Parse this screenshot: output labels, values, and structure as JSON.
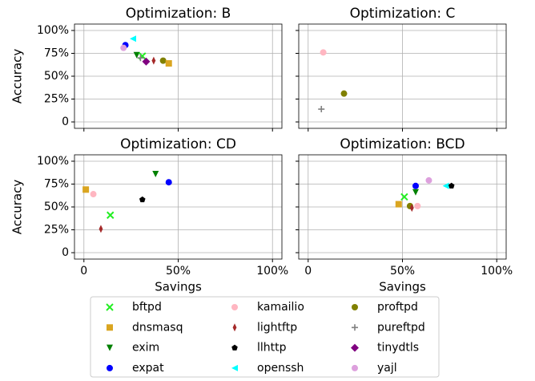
{
  "chart_data": [
    {
      "type": "scatter",
      "title": "Optimization: B",
      "series": [
        {
          "name": "expat",
          "x": [
            22
          ],
          "values": [
            84
          ]
        },
        {
          "name": "openssh",
          "x": [
            26
          ],
          "values": [
            91
          ]
        },
        {
          "name": "yajl",
          "x": [
            21
          ],
          "values": [
            81
          ]
        },
        {
          "name": "exim",
          "x": [
            28
          ],
          "values": [
            73
          ]
        },
        {
          "name": "bftpd",
          "x": [
            31
          ],
          "values": [
            72
          ]
        },
        {
          "name": "pureftpd",
          "x": [
            30
          ],
          "values": [
            70
          ]
        },
        {
          "name": "tinydtls",
          "x": [
            33
          ],
          "values": [
            66
          ]
        },
        {
          "name": "lightftp",
          "x": [
            37
          ],
          "values": [
            67
          ]
        },
        {
          "name": "proftpd",
          "x": [
            42
          ],
          "values": [
            67
          ]
        },
        {
          "name": "dnsmasq",
          "x": [
            45
          ],
          "values": [
            64
          ]
        }
      ]
    },
    {
      "type": "scatter",
      "title": "Optimization: C",
      "series": [
        {
          "name": "kamailio",
          "x": [
            8
          ],
          "values": [
            76
          ]
        },
        {
          "name": "proftpd",
          "x": [
            19
          ],
          "values": [
            31
          ]
        },
        {
          "name": "pureftpd",
          "x": [
            7
          ],
          "values": [
            14
          ]
        }
      ]
    },
    {
      "type": "scatter",
      "title": "Optimization: CD",
      "series": [
        {
          "name": "dnsmasq",
          "x": [
            1
          ],
          "values": [
            69
          ]
        },
        {
          "name": "kamailio",
          "x": [
            5
          ],
          "values": [
            64
          ]
        },
        {
          "name": "exim",
          "x": [
            38
          ],
          "values": [
            86
          ]
        },
        {
          "name": "expat",
          "x": [
            45
          ],
          "values": [
            77
          ]
        },
        {
          "name": "llhttp",
          "x": [
            31
          ],
          "values": [
            58
          ]
        },
        {
          "name": "bftpd",
          "x": [
            14
          ],
          "values": [
            41
          ]
        },
        {
          "name": "lightftp",
          "x": [
            9
          ],
          "values": [
            26
          ]
        }
      ]
    },
    {
      "type": "scatter",
      "title": "Optimization: BCD",
      "series": [
        {
          "name": "bftpd",
          "x": [
            51
          ],
          "values": [
            61
          ]
        },
        {
          "name": "dnsmasq",
          "x": [
            48
          ],
          "values": [
            53
          ]
        },
        {
          "name": "proftpd",
          "x": [
            54
          ],
          "values": [
            51
          ]
        },
        {
          "name": "lightftp",
          "x": [
            55
          ],
          "values": [
            49
          ]
        },
        {
          "name": "kamailio",
          "x": [
            58
          ],
          "values": [
            51
          ]
        },
        {
          "name": "exim",
          "x": [
            57
          ],
          "values": [
            66
          ]
        },
        {
          "name": "expat",
          "x": [
            57
          ],
          "values": [
            73
          ]
        },
        {
          "name": "yajl",
          "x": [
            64
          ],
          "values": [
            79
          ]
        },
        {
          "name": "openssh",
          "x": [
            73
          ],
          "values": [
            73
          ]
        },
        {
          "name": "llhttp",
          "x": [
            76
          ],
          "values": [
            73
          ]
        }
      ]
    }
  ],
  "x_label": "Savings",
  "y_label": "Accuracy",
  "xlim": [
    -5,
    105
  ],
  "ylim": [
    -7,
    107
  ],
  "xticks": [
    0,
    {
      "value": 50,
      "label": "50%"
    },
    {
      "value": 100,
      "label": "100%"
    }
  ],
  "yticks": [
    0,
    {
      "value": 25,
      "label": "25%"
    },
    {
      "value": 50,
      "label": "50%"
    },
    {
      "value": 75,
      "label": "75%"
    },
    {
      "value": 100,
      "label": "100%"
    }
  ],
  "grid": true,
  "legend": [
    {
      "name": "bftpd",
      "color": "#22ee22",
      "marker": "x"
    },
    {
      "name": "dnsmasq",
      "color": "#daa520",
      "marker": "square"
    },
    {
      "name": "exim",
      "color": "#008000",
      "marker": "triangle-down"
    },
    {
      "name": "expat",
      "color": "#0000ff",
      "marker": "circle"
    },
    {
      "name": "kamailio",
      "color": "#ffb6c1",
      "marker": "circle"
    },
    {
      "name": "lightftp",
      "color": "#a52a2a",
      "marker": "thin-diamond"
    },
    {
      "name": "llhttp",
      "color": "#000000",
      "marker": "pentagon"
    },
    {
      "name": "openssh",
      "color": "#00ffff",
      "marker": "triangle-left"
    },
    {
      "name": "proftpd",
      "color": "#808000",
      "marker": "circle"
    },
    {
      "name": "pureftpd",
      "color": "#808080",
      "marker": "plus"
    },
    {
      "name": "tinydtls",
      "color": "#800080",
      "marker": "diamond"
    },
    {
      "name": "yajl",
      "color": "#dda0dd",
      "marker": "circle"
    }
  ]
}
